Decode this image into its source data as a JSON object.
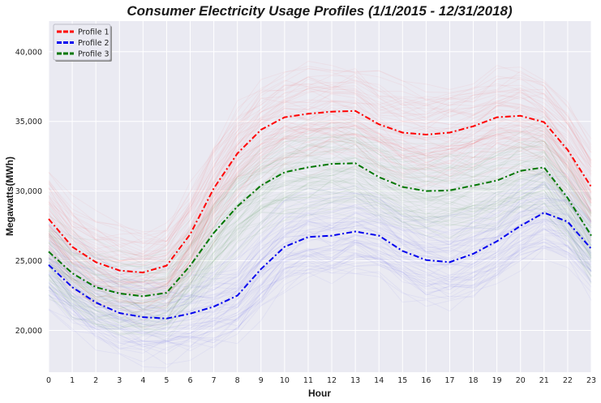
{
  "chart_data": {
    "type": "line",
    "title": "Consumer Electricity Usage Profiles (1/1/2015 - 12/31/2018)",
    "xlabel": "Hour",
    "ylabel": "Megawatts(MWh)",
    "x": [
      0,
      1,
      2,
      3,
      4,
      5,
      6,
      7,
      8,
      9,
      10,
      11,
      12,
      13,
      14,
      15,
      16,
      17,
      18,
      19,
      20,
      21,
      22,
      23
    ],
    "xlim": [
      0,
      23
    ],
    "ylim": [
      17000,
      42200
    ],
    "yticks": [
      20000,
      25000,
      30000,
      35000,
      40000
    ],
    "ytick_labels": [
      "20,000",
      "25,000",
      "30,000",
      "35,000",
      "40,000"
    ],
    "xtick_labels": [
      "0",
      "1",
      "2",
      "3",
      "4",
      "5",
      "6",
      "7",
      "8",
      "9",
      "10",
      "11",
      "12",
      "13",
      "14",
      "15",
      "16",
      "17",
      "18",
      "19",
      "20",
      "21",
      "22",
      "23"
    ],
    "grid": true,
    "legend": "top-left",
    "series": [
      {
        "name": "Profile 1",
        "color": "#ff0000",
        "values": [
          28000,
          26000,
          24900,
          24300,
          24150,
          24650,
          26900,
          30200,
          32700,
          34400,
          35300,
          35550,
          35700,
          35750,
          34800,
          34200,
          34050,
          34200,
          34650,
          35300,
          35400,
          34950,
          32950,
          30300
        ]
      },
      {
        "name": "Profile 2",
        "color": "#0000ee",
        "values": [
          24700,
          23100,
          22000,
          21250,
          20950,
          20850,
          21200,
          21700,
          22500,
          24400,
          26000,
          26700,
          26800,
          27100,
          26800,
          25700,
          25050,
          24900,
          25500,
          26400,
          27500,
          28450,
          27800,
          25850
        ]
      },
      {
        "name": "Profile 3",
        "color": "#007700",
        "values": [
          25650,
          24100,
          23100,
          22650,
          22450,
          22700,
          24650,
          27000,
          28900,
          30400,
          31350,
          31700,
          31950,
          32000,
          31000,
          30300,
          30000,
          30050,
          30400,
          30750,
          31450,
          31700,
          29500,
          26800
        ]
      }
    ]
  }
}
